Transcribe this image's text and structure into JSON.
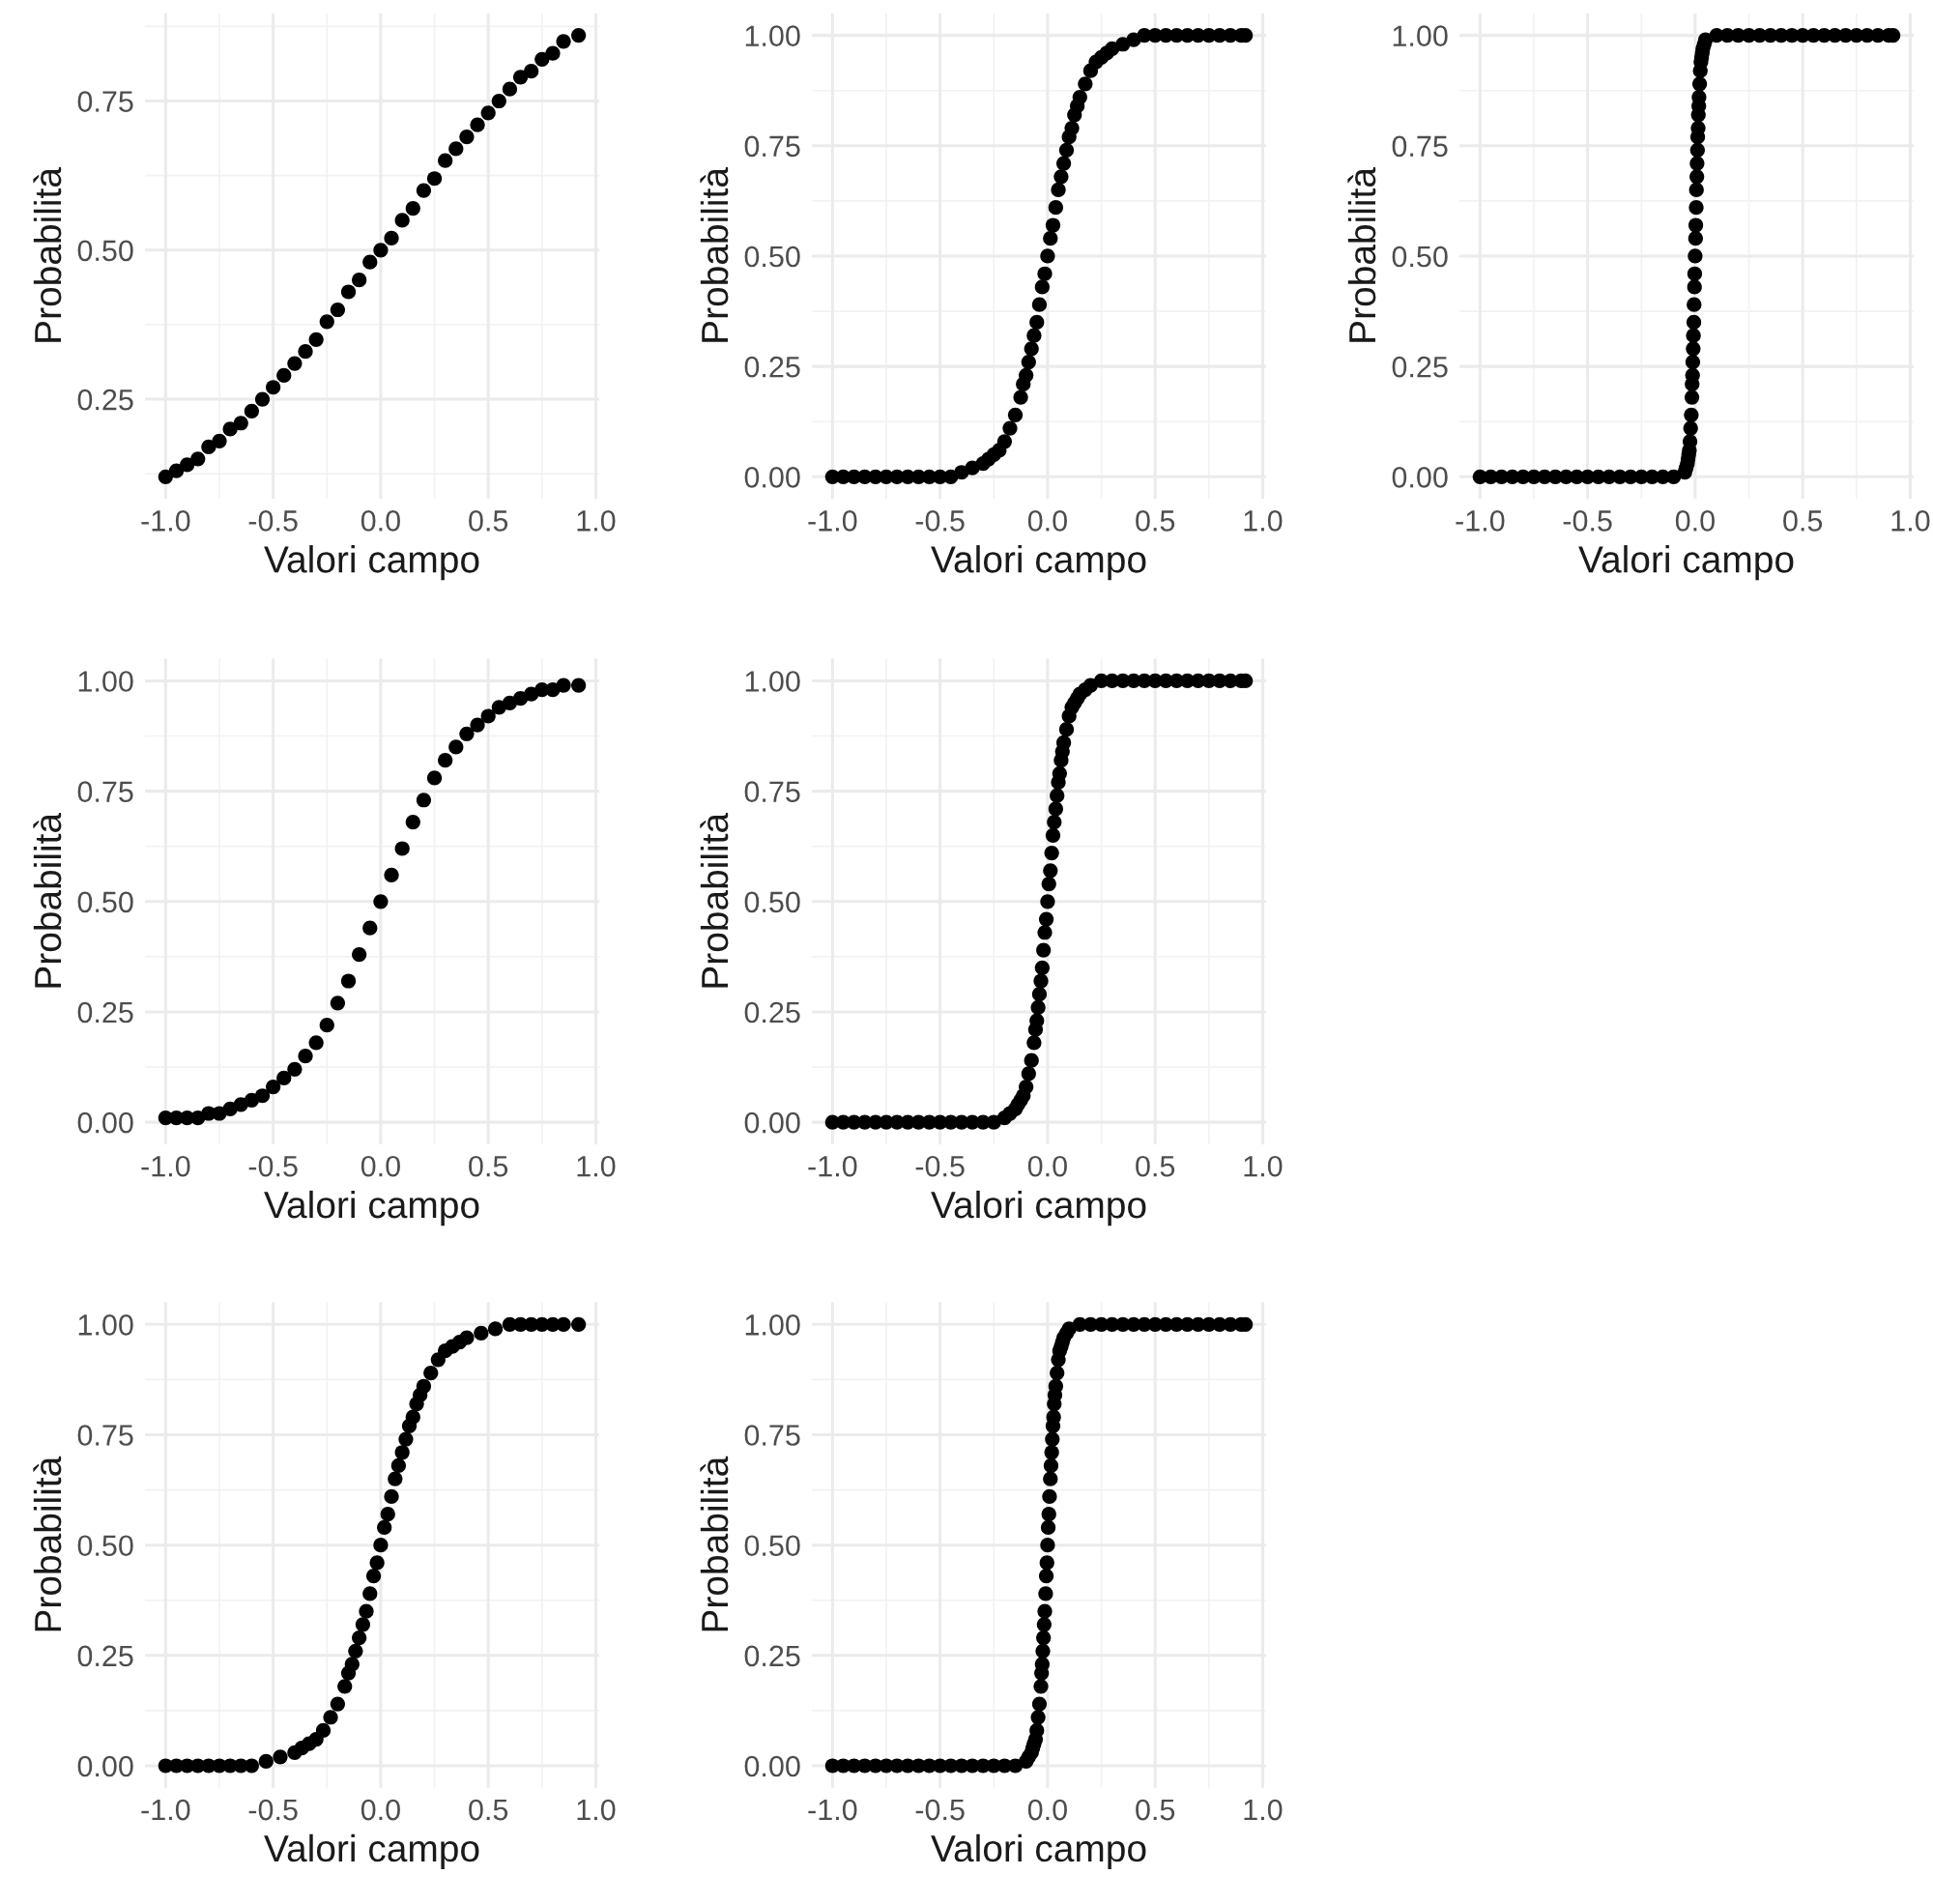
{
  "chart_data": [
    {
      "type": "scatter",
      "xlabel": "Valori campo",
      "ylabel": "Probabilità",
      "marker": "circle",
      "grid": true,
      "color": "#000000",
      "x": [
        -1,
        -0.95,
        -0.9,
        -0.85,
        -0.8,
        -0.75,
        -0.7,
        -0.65,
        -0.6,
        -0.55,
        -0.5,
        -0.45,
        -0.4,
        -0.35,
        -0.3,
        -0.25,
        -0.2,
        -0.15,
        -0.1,
        -0.05,
        0,
        0.05,
        0.1,
        0.15,
        0.2,
        0.25,
        0.3,
        0.35,
        0.4,
        0.45,
        0.5,
        0.55,
        0.6,
        0.65,
        0.7,
        0.75,
        0.8,
        0.85,
        0.92
      ],
      "values": [
        0.12,
        0.13,
        0.14,
        0.15,
        0.17,
        0.18,
        0.2,
        0.21,
        0.23,
        0.25,
        0.27,
        0.29,
        0.31,
        0.33,
        0.35,
        0.38,
        0.4,
        0.43,
        0.45,
        0.48,
        0.5,
        0.52,
        0.55,
        0.57,
        0.6,
        0.62,
        0.65,
        0.67,
        0.69,
        0.71,
        0.73,
        0.75,
        0.77,
        0.79,
        0.8,
        0.82,
        0.83,
        0.85,
        0.86
      ],
      "xlim": [
        -1.096,
        1.016
      ],
      "ylim": [
        0.083,
        0.897
      ],
      "xticks": [
        {
          "value": -1,
          "label": "-1.0"
        },
        {
          "value": -0.5,
          "label": "-0.5"
        },
        {
          "value": 0,
          "label": "0.0"
        },
        {
          "value": 0.5,
          "label": "0.5"
        },
        {
          "value": 1,
          "label": "1.0"
        }
      ],
      "yticks": [
        {
          "value": 0.25,
          "label": "0.25"
        },
        {
          "value": 0.5,
          "label": "0.50"
        },
        {
          "value": 0.75,
          "label": "0.75"
        }
      ]
    },
    {
      "type": "scatter",
      "xlabel": "Valori campo",
      "ylabel": "Probabilità",
      "marker": "circle",
      "grid": true,
      "color": "#000000",
      "x": [
        -1,
        -0.95,
        -0.9,
        -0.85,
        -0.8,
        -0.75,
        -0.7,
        -0.65,
        -0.6,
        -0.55,
        -0.5,
        -0.45,
        -0.4,
        -0.35,
        -0.3,
        -0.275,
        -0.25,
        -0.225,
        -0.2,
        -0.175,
        -0.15,
        -0.125,
        -0.113,
        -0.1,
        -0.088,
        -0.075,
        -0.063,
        -0.05,
        -0.038,
        -0.025,
        -0.013,
        0,
        0.013,
        0.025,
        0.038,
        0.05,
        0.063,
        0.075,
        0.088,
        0.1,
        0.113,
        0.125,
        0.138,
        0.15,
        0.175,
        0.2,
        0.225,
        0.25,
        0.275,
        0.3,
        0.35,
        0.4,
        0.45,
        0.5,
        0.55,
        0.6,
        0.65,
        0.7,
        0.75,
        0.8,
        0.85,
        0.9,
        0.92
      ],
      "values": [
        0,
        0,
        0,
        0,
        0,
        0,
        0,
        0,
        0,
        0,
        0,
        0,
        0.01,
        0.02,
        0.03,
        0.04,
        0.05,
        0.06,
        0.08,
        0.11,
        0.14,
        0.18,
        0.21,
        0.23,
        0.26,
        0.29,
        0.32,
        0.35,
        0.39,
        0.43,
        0.46,
        0.5,
        0.54,
        0.57,
        0.61,
        0.65,
        0.68,
        0.71,
        0.74,
        0.77,
        0.79,
        0.82,
        0.84,
        0.86,
        0.89,
        0.92,
        0.94,
        0.95,
        0.96,
        0.97,
        0.98,
        0.99,
        1,
        1,
        1,
        1,
        1,
        1,
        1,
        1,
        1,
        1,
        1
      ],
      "xlim": [
        -1.096,
        1.016
      ],
      "ylim": [
        -0.05,
        1.05
      ],
      "xticks": [
        {
          "value": -1,
          "label": "-1.0"
        },
        {
          "value": -0.5,
          "label": "-0.5"
        },
        {
          "value": 0,
          "label": "0.0"
        },
        {
          "value": 0.5,
          "label": "0.5"
        },
        {
          "value": 1,
          "label": "1.0"
        }
      ],
      "yticks": [
        {
          "value": 0,
          "label": "0.00"
        },
        {
          "value": 0.25,
          "label": "0.25"
        },
        {
          "value": 0.5,
          "label": "0.50"
        },
        {
          "value": 0.75,
          "label": "0.75"
        },
        {
          "value": 1,
          "label": "1.00"
        }
      ]
    },
    {
      "type": "scatter",
      "xlabel": "Valori campo",
      "ylabel": "Probabilità",
      "marker": "circle",
      "grid": true,
      "color": "#000000",
      "x": [
        -1,
        -0.95,
        -0.9,
        -0.85,
        -0.8,
        -0.75,
        -0.7,
        -0.65,
        -0.6,
        -0.55,
        -0.5,
        -0.45,
        -0.4,
        -0.35,
        -0.3,
        -0.25,
        -0.2,
        -0.15,
        -0.1,
        -0.048,
        -0.042,
        -0.036,
        -0.033,
        -0.03,
        -0.027,
        -0.024,
        -0.021,
        -0.018,
        -0.015,
        -0.014,
        -0.012,
        -0.011,
        -0.009,
        -0.008,
        -0.006,
        -0.005,
        -0.003,
        -0.002,
        0,
        0.002,
        0.003,
        0.005,
        0.006,
        0.008,
        0.009,
        0.011,
        0.012,
        0.014,
        0.015,
        0.017,
        0.018,
        0.021,
        0.024,
        0.027,
        0.03,
        0.033,
        0.036,
        0.042,
        0.048,
        0.1,
        0.15,
        0.2,
        0.25,
        0.3,
        0.35,
        0.4,
        0.45,
        0.5,
        0.55,
        0.6,
        0.65,
        0.7,
        0.75,
        0.8,
        0.85,
        0.9,
        0.92
      ],
      "values": [
        0,
        0,
        0,
        0,
        0,
        0,
        0,
        0,
        0,
        0,
        0,
        0,
        0,
        0,
        0,
        0,
        0,
        0,
        0,
        0.01,
        0.02,
        0.03,
        0.04,
        0.05,
        0.06,
        0.08,
        0.11,
        0.14,
        0.18,
        0.21,
        0.23,
        0.26,
        0.29,
        0.32,
        0.35,
        0.39,
        0.43,
        0.46,
        0.5,
        0.54,
        0.57,
        0.61,
        0.65,
        0.68,
        0.71,
        0.74,
        0.77,
        0.79,
        0.82,
        0.84,
        0.86,
        0.89,
        0.92,
        0.94,
        0.95,
        0.96,
        0.97,
        0.98,
        0.99,
        1,
        1,
        1,
        1,
        1,
        1,
        1,
        1,
        1,
        1,
        1,
        1,
        1,
        1,
        1,
        1,
        1,
        1
      ],
      "xlim": [
        -1.096,
        1.016
      ],
      "ylim": [
        -0.05,
        1.05
      ],
      "xticks": [
        {
          "value": -1,
          "label": "-1.0"
        },
        {
          "value": -0.5,
          "label": "-0.5"
        },
        {
          "value": 0,
          "label": "0.0"
        },
        {
          "value": 0.5,
          "label": "0.5"
        },
        {
          "value": 1,
          "label": "1.0"
        }
      ],
      "yticks": [
        {
          "value": 0,
          "label": "0.00"
        },
        {
          "value": 0.25,
          "label": "0.25"
        },
        {
          "value": 0.5,
          "label": "0.50"
        },
        {
          "value": 0.75,
          "label": "0.75"
        },
        {
          "value": 1,
          "label": "1.00"
        }
      ]
    },
    {
      "type": "scatter",
      "xlabel": "Valori campo",
      "ylabel": "Probabilità",
      "marker": "circle",
      "grid": true,
      "color": "#000000",
      "x": [
        -1,
        -0.95,
        -0.9,
        -0.85,
        -0.8,
        -0.75,
        -0.7,
        -0.65,
        -0.6,
        -0.55,
        -0.5,
        -0.45,
        -0.4,
        -0.35,
        -0.3,
        -0.25,
        -0.2,
        -0.15,
        -0.1,
        -0.05,
        0,
        0.05,
        0.1,
        0.15,
        0.2,
        0.25,
        0.3,
        0.35,
        0.4,
        0.45,
        0.5,
        0.55,
        0.6,
        0.65,
        0.7,
        0.75,
        0.8,
        0.85,
        0.92
      ],
      "values": [
        0.01,
        0.01,
        0.01,
        0.01,
        0.02,
        0.02,
        0.03,
        0.04,
        0.05,
        0.06,
        0.08,
        0.1,
        0.12,
        0.15,
        0.18,
        0.22,
        0.27,
        0.32,
        0.38,
        0.44,
        0.5,
        0.56,
        0.62,
        0.68,
        0.73,
        0.78,
        0.82,
        0.85,
        0.88,
        0.9,
        0.92,
        0.94,
        0.95,
        0.96,
        0.97,
        0.98,
        0.98,
        0.99,
        0.99
      ],
      "xlim": [
        -1.096,
        1.016
      ],
      "ylim": [
        -0.05,
        1.05
      ],
      "xticks": [
        {
          "value": -1,
          "label": "-1.0"
        },
        {
          "value": -0.5,
          "label": "-0.5"
        },
        {
          "value": 0,
          "label": "0.0"
        },
        {
          "value": 0.5,
          "label": "0.5"
        },
        {
          "value": 1,
          "label": "1.0"
        }
      ],
      "yticks": [
        {
          "value": 0,
          "label": "0.00"
        },
        {
          "value": 0.25,
          "label": "0.25"
        },
        {
          "value": 0.5,
          "label": "0.50"
        },
        {
          "value": 0.75,
          "label": "0.75"
        },
        {
          "value": 1,
          "label": "1.00"
        }
      ]
    },
    {
      "type": "scatter",
      "xlabel": "Valori campo",
      "ylabel": "Probabilità",
      "marker": "circle",
      "grid": true,
      "color": "#000000",
      "x": [
        -1,
        -0.95,
        -0.9,
        -0.85,
        -0.8,
        -0.75,
        -0.7,
        -0.65,
        -0.6,
        -0.55,
        -0.5,
        -0.45,
        -0.4,
        -0.35,
        -0.3,
        -0.25,
        -0.2,
        -0.175,
        -0.15,
        -0.138,
        -0.125,
        -0.113,
        -0.1,
        -0.088,
        -0.075,
        -0.063,
        -0.056,
        -0.05,
        -0.044,
        -0.038,
        -0.031,
        -0.025,
        -0.019,
        -0.013,
        -0.006,
        0,
        0.006,
        0.013,
        0.019,
        0.025,
        0.031,
        0.038,
        0.044,
        0.05,
        0.056,
        0.063,
        0.069,
        0.075,
        0.088,
        0.1,
        0.113,
        0.125,
        0.138,
        0.15,
        0.175,
        0.2,
        0.25,
        0.3,
        0.35,
        0.4,
        0.45,
        0.5,
        0.55,
        0.6,
        0.65,
        0.7,
        0.75,
        0.8,
        0.85,
        0.9,
        0.92
      ],
      "values": [
        0,
        0,
        0,
        0,
        0,
        0,
        0,
        0,
        0,
        0,
        0,
        0,
        0,
        0,
        0,
        0,
        0.01,
        0.02,
        0.03,
        0.04,
        0.05,
        0.06,
        0.08,
        0.11,
        0.14,
        0.18,
        0.21,
        0.23,
        0.26,
        0.29,
        0.32,
        0.35,
        0.39,
        0.43,
        0.46,
        0.5,
        0.54,
        0.57,
        0.61,
        0.65,
        0.68,
        0.71,
        0.74,
        0.77,
        0.79,
        0.82,
        0.84,
        0.86,
        0.89,
        0.92,
        0.94,
        0.95,
        0.96,
        0.97,
        0.98,
        0.99,
        1,
        1,
        1,
        1,
        1,
        1,
        1,
        1,
        1,
        1,
        1,
        1,
        1,
        1,
        1
      ],
      "xlim": [
        -1.096,
        1.016
      ],
      "ylim": [
        -0.05,
        1.05
      ],
      "xticks": [
        {
          "value": -1,
          "label": "-1.0"
        },
        {
          "value": -0.5,
          "label": "-0.5"
        },
        {
          "value": 0,
          "label": "0.0"
        },
        {
          "value": 0.5,
          "label": "0.5"
        },
        {
          "value": 1,
          "label": "1.0"
        }
      ],
      "yticks": [
        {
          "value": 0,
          "label": "0.00"
        },
        {
          "value": 0.25,
          "label": "0.25"
        },
        {
          "value": 0.5,
          "label": "0.50"
        },
        {
          "value": 0.75,
          "label": "0.75"
        },
        {
          "value": 1,
          "label": "1.00"
        }
      ]
    },
    {
      "type": "scatter",
      "xlabel": "Valori campo",
      "ylabel": "Probabilità",
      "marker": "circle",
      "grid": true,
      "color": "#000000",
      "x": [
        -1,
        -0.95,
        -0.9,
        -0.85,
        -0.8,
        -0.75,
        -0.7,
        -0.65,
        -0.6,
        -0.533,
        -0.467,
        -0.4,
        -0.367,
        -0.333,
        -0.3,
        -0.267,
        -0.233,
        -0.2,
        -0.167,
        -0.15,
        -0.133,
        -0.117,
        -0.1,
        -0.083,
        -0.067,
        -0.05,
        -0.033,
        -0.017,
        0,
        0.017,
        0.033,
        0.05,
        0.067,
        0.083,
        0.1,
        0.117,
        0.133,
        0.15,
        0.167,
        0.183,
        0.2,
        0.233,
        0.267,
        0.3,
        0.333,
        0.367,
        0.4,
        0.467,
        0.533,
        0.6,
        0.65,
        0.7,
        0.75,
        0.8,
        0.85,
        0.92
      ],
      "values": [
        0,
        0,
        0,
        0,
        0,
        0,
        0,
        0,
        0,
        0.01,
        0.02,
        0.03,
        0.04,
        0.05,
        0.06,
        0.08,
        0.11,
        0.14,
        0.18,
        0.21,
        0.23,
        0.26,
        0.29,
        0.32,
        0.35,
        0.39,
        0.43,
        0.46,
        0.5,
        0.54,
        0.57,
        0.61,
        0.65,
        0.68,
        0.71,
        0.74,
        0.77,
        0.79,
        0.82,
        0.84,
        0.86,
        0.89,
        0.92,
        0.94,
        0.95,
        0.96,
        0.97,
        0.98,
        0.99,
        1,
        1,
        1,
        1,
        1,
        1,
        1
      ],
      "xlim": [
        -1.096,
        1.016
      ],
      "ylim": [
        -0.05,
        1.05
      ],
      "xticks": [
        {
          "value": -1,
          "label": "-1.0"
        },
        {
          "value": -0.5,
          "label": "-0.5"
        },
        {
          "value": 0,
          "label": "0.0"
        },
        {
          "value": 0.5,
          "label": "0.5"
        },
        {
          "value": 1,
          "label": "1.0"
        }
      ],
      "yticks": [
        {
          "value": 0,
          "label": "0.00"
        },
        {
          "value": 0.25,
          "label": "0.25"
        },
        {
          "value": 0.5,
          "label": "0.50"
        },
        {
          "value": 0.75,
          "label": "0.75"
        },
        {
          "value": 1,
          "label": "1.00"
        }
      ]
    },
    {
      "type": "scatter",
      "xlabel": "Valori campo",
      "ylabel": "Probabilità",
      "marker": "circle",
      "grid": true,
      "color": "#000000",
      "x": [
        -1,
        -0.95,
        -0.9,
        -0.85,
        -0.8,
        -0.75,
        -0.7,
        -0.65,
        -0.6,
        -0.55,
        -0.5,
        -0.45,
        -0.4,
        -0.35,
        -0.3,
        -0.25,
        -0.2,
        -0.15,
        -0.1,
        -0.088,
        -0.075,
        -0.069,
        -0.063,
        -0.056,
        -0.05,
        -0.044,
        -0.038,
        -0.031,
        -0.028,
        -0.025,
        -0.022,
        -0.019,
        -0.016,
        -0.013,
        -0.009,
        -0.006,
        -0.003,
        0,
        0.003,
        0.006,
        0.009,
        0.013,
        0.016,
        0.019,
        0.022,
        0.025,
        0.028,
        0.031,
        0.034,
        0.038,
        0.044,
        0.05,
        0.056,
        0.063,
        0.069,
        0.075,
        0.088,
        0.1,
        0.15,
        0.2,
        0.25,
        0.3,
        0.35,
        0.4,
        0.45,
        0.5,
        0.55,
        0.6,
        0.65,
        0.7,
        0.75,
        0.8,
        0.85,
        0.9,
        0.92
      ],
      "values": [
        0,
        0,
        0,
        0,
        0,
        0,
        0,
        0,
        0,
        0,
        0,
        0,
        0,
        0,
        0,
        0,
        0,
        0,
        0.01,
        0.02,
        0.03,
        0.04,
        0.05,
        0.06,
        0.08,
        0.11,
        0.14,
        0.18,
        0.21,
        0.23,
        0.26,
        0.29,
        0.32,
        0.35,
        0.39,
        0.43,
        0.46,
        0.5,
        0.54,
        0.57,
        0.61,
        0.65,
        0.68,
        0.71,
        0.74,
        0.77,
        0.79,
        0.82,
        0.84,
        0.86,
        0.89,
        0.92,
        0.94,
        0.95,
        0.96,
        0.97,
        0.98,
        0.99,
        1,
        1,
        1,
        1,
        1,
        1,
        1,
        1,
        1,
        1,
        1,
        1,
        1,
        1,
        1,
        1,
        1
      ],
      "xlim": [
        -1.096,
        1.016
      ],
      "ylim": [
        -0.05,
        1.05
      ],
      "xticks": [
        {
          "value": -1,
          "label": "-1.0"
        },
        {
          "value": -0.5,
          "label": "-0.5"
        },
        {
          "value": 0,
          "label": "0.0"
        },
        {
          "value": 0.5,
          "label": "0.5"
        },
        {
          "value": 1,
          "label": "1.0"
        }
      ],
      "yticks": [
        {
          "value": 0,
          "label": "0.00"
        },
        {
          "value": 0.25,
          "label": "0.25"
        },
        {
          "value": 0.5,
          "label": "0.50"
        },
        {
          "value": 0.75,
          "label": "0.75"
        },
        {
          "value": 1,
          "label": "1.00"
        }
      ]
    }
  ]
}
